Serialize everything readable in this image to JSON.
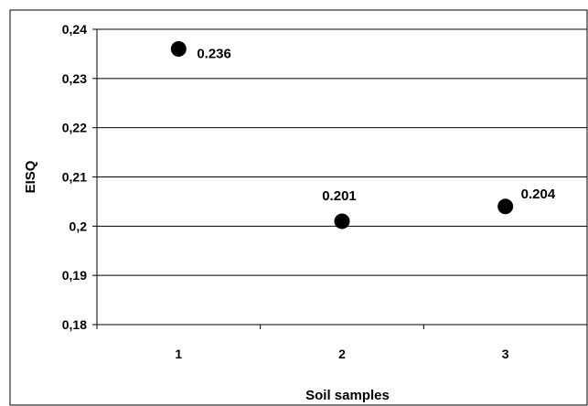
{
  "chart_data": {
    "type": "scatter",
    "xlabel": "Soil samples",
    "ylabel": "EISQ",
    "categories": [
      "1",
      "2",
      "3"
    ],
    "x": [
      1,
      2,
      3
    ],
    "values": [
      0.236,
      0.201,
      0.204
    ],
    "data_labels": [
      "0.236",
      "0.201",
      "0.204"
    ],
    "ylim": [
      0.18,
      0.24
    ],
    "y_ticks": [
      0.18,
      0.19,
      0.2,
      0.21,
      0.22,
      0.23,
      0.24
    ],
    "y_tick_labels": [
      "0,18",
      "0,19",
      "0,2",
      "0,21",
      "0,22",
      "0,23",
      "0,24"
    ],
    "grid": true,
    "legend": "none",
    "marker_color": "#000000",
    "gridline_color": "#000000"
  }
}
